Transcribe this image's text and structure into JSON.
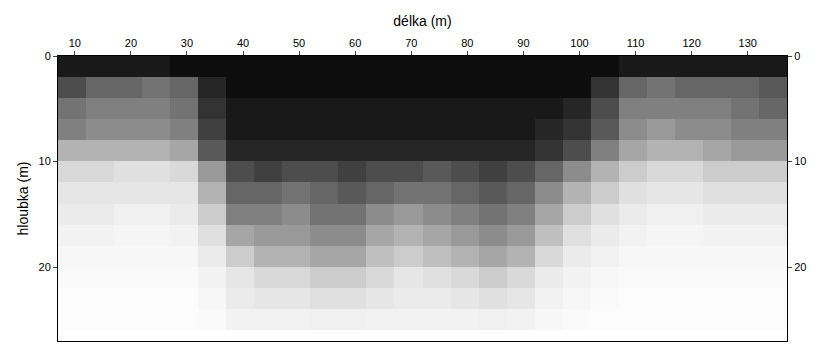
{
  "chart_data": {
    "type": "heatmap",
    "x_label": "délka (m)",
    "y_label": "hloubka (m)",
    "x": [
      9.5,
      14.5,
      19.5,
      24.5,
      29.5,
      34.5,
      39.5,
      44.5,
      49.5,
      54.5,
      59.5,
      64.5,
      69.5,
      74.5,
      79.5,
      84.5,
      89.5,
      94.5,
      99.5,
      104.5,
      109.5,
      114.5,
      119.5,
      124.5,
      129.5,
      134.5
    ],
    "y": [
      1,
      3,
      5,
      7,
      9,
      11,
      13,
      15,
      17,
      19,
      21,
      23,
      25
    ],
    "cells": [
      [
        0.9,
        0.9,
        0.9,
        0.9,
        0.95,
        0.95,
        0.95,
        0.95,
        0.95,
        0.95,
        0.95,
        0.95,
        0.95,
        0.95,
        0.95,
        0.95,
        0.95,
        0.95,
        0.95,
        0.95,
        0.9,
        0.9,
        0.9,
        0.9,
        0.9,
        0.9
      ],
      [
        0.7,
        0.6,
        0.6,
        0.55,
        0.6,
        0.85,
        0.95,
        0.95,
        0.95,
        0.95,
        0.95,
        0.95,
        0.95,
        0.95,
        0.95,
        0.95,
        0.95,
        0.95,
        0.95,
        0.8,
        0.6,
        0.55,
        0.6,
        0.6,
        0.6,
        0.65
      ],
      [
        0.55,
        0.5,
        0.5,
        0.5,
        0.55,
        0.8,
        0.9,
        0.9,
        0.9,
        0.9,
        0.9,
        0.9,
        0.9,
        0.9,
        0.9,
        0.9,
        0.9,
        0.9,
        0.85,
        0.7,
        0.5,
        0.5,
        0.5,
        0.5,
        0.55,
        0.6
      ],
      [
        0.5,
        0.45,
        0.45,
        0.45,
        0.5,
        0.75,
        0.9,
        0.9,
        0.9,
        0.9,
        0.9,
        0.9,
        0.9,
        0.9,
        0.9,
        0.9,
        0.9,
        0.85,
        0.8,
        0.65,
        0.45,
        0.4,
        0.45,
        0.45,
        0.5,
        0.5
      ],
      [
        0.3,
        0.3,
        0.3,
        0.3,
        0.35,
        0.65,
        0.85,
        0.85,
        0.85,
        0.85,
        0.85,
        0.85,
        0.85,
        0.85,
        0.85,
        0.85,
        0.85,
        0.8,
        0.7,
        0.5,
        0.35,
        0.3,
        0.3,
        0.35,
        0.4,
        0.4
      ],
      [
        0.15,
        0.15,
        0.12,
        0.12,
        0.15,
        0.4,
        0.7,
        0.75,
        0.7,
        0.7,
        0.75,
        0.7,
        0.7,
        0.65,
        0.7,
        0.75,
        0.7,
        0.6,
        0.45,
        0.3,
        0.2,
        0.15,
        0.15,
        0.2,
        0.2,
        0.2
      ],
      [
        0.1,
        0.1,
        0.1,
        0.1,
        0.1,
        0.3,
        0.6,
        0.6,
        0.55,
        0.6,
        0.65,
        0.6,
        0.55,
        0.55,
        0.6,
        0.65,
        0.6,
        0.45,
        0.3,
        0.2,
        0.12,
        0.1,
        0.1,
        0.12,
        0.12,
        0.12
      ],
      [
        0.08,
        0.08,
        0.06,
        0.06,
        0.08,
        0.2,
        0.5,
        0.5,
        0.45,
        0.55,
        0.55,
        0.45,
        0.4,
        0.45,
        0.5,
        0.55,
        0.5,
        0.35,
        0.2,
        0.12,
        0.08,
        0.06,
        0.06,
        0.08,
        0.08,
        0.08
      ],
      [
        0.05,
        0.05,
        0.04,
        0.04,
        0.05,
        0.12,
        0.35,
        0.4,
        0.4,
        0.45,
        0.45,
        0.35,
        0.3,
        0.35,
        0.4,
        0.45,
        0.4,
        0.25,
        0.12,
        0.08,
        0.05,
        0.04,
        0.04,
        0.05,
        0.05,
        0.05
      ],
      [
        0.03,
        0.03,
        0.03,
        0.03,
        0.03,
        0.08,
        0.2,
        0.3,
        0.3,
        0.35,
        0.35,
        0.25,
        0.2,
        0.25,
        0.3,
        0.35,
        0.3,
        0.15,
        0.08,
        0.05,
        0.03,
        0.03,
        0.03,
        0.03,
        0.03,
        0.03
      ],
      [
        0.02,
        0.02,
        0.02,
        0.02,
        0.02,
        0.05,
        0.1,
        0.15,
        0.15,
        0.2,
        0.2,
        0.15,
        0.1,
        0.12,
        0.15,
        0.2,
        0.15,
        0.08,
        0.05,
        0.03,
        0.02,
        0.02,
        0.02,
        0.02,
        0.02,
        0.02
      ],
      [
        0.01,
        0.01,
        0.01,
        0.01,
        0.01,
        0.03,
        0.08,
        0.1,
        0.1,
        0.12,
        0.12,
        0.1,
        0.08,
        0.08,
        0.1,
        0.12,
        0.1,
        0.05,
        0.03,
        0.02,
        0.01,
        0.01,
        0.01,
        0.01,
        0.01,
        0.01
      ],
      [
        0.01,
        0.01,
        0.01,
        0.01,
        0.01,
        0.02,
        0.05,
        0.05,
        0.05,
        0.06,
        0.06,
        0.05,
        0.05,
        0.05,
        0.05,
        0.06,
        0.05,
        0.03,
        0.02,
        0.01,
        0.01,
        0.01,
        0.01,
        0.01,
        0.01,
        0.01
      ]
    ],
    "zlim": [
      0,
      1
    ],
    "xlim": [
      7,
      137
    ],
    "xticks": [
      10,
      20,
      30,
      40,
      50,
      60,
      70,
      80,
      90,
      100,
      110,
      120,
      130
    ],
    "ylim": [
      0,
      27
    ],
    "yticks": [
      0,
      10,
      20
    ],
    "y2lim": [
      0,
      27
    ],
    "y2ticks": [
      0,
      10,
      20
    ],
    "grid": false
  }
}
